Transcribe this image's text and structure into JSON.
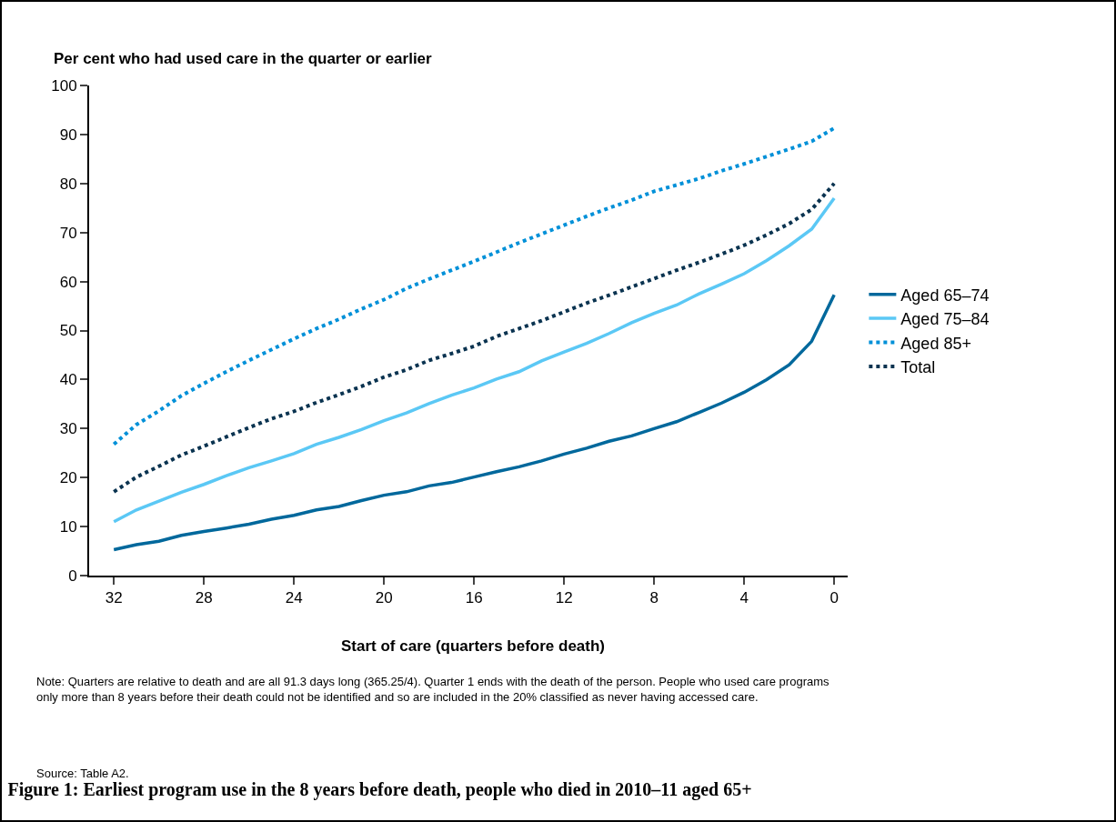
{
  "chart_data": {
    "type": "line",
    "title": "Figure 1: Earliest program use in the 8 years before death, people who died in 2010–11 aged 65+",
    "xlabel": "Start of care (quarters before death)",
    "ylabel": "Per cent who had used care in the quarter or earlier",
    "x": [
      32,
      31,
      30,
      29,
      28,
      27,
      26,
      25,
      24,
      23,
      22,
      21,
      20,
      19,
      18,
      17,
      16,
      15,
      14,
      13,
      12,
      11,
      10,
      9,
      8,
      7,
      6,
      5,
      4,
      3,
      2,
      1,
      0
    ],
    "series": [
      {
        "name": "Aged 65–74",
        "color": "#00689c",
        "line_style": "solid",
        "values": [
          5.3,
          6.3,
          7.0,
          8.2,
          9.0,
          9.7,
          10.5,
          11.5,
          12.3,
          13.4,
          14.1,
          15.3,
          16.4,
          17.1,
          18.3,
          19.0,
          20.1,
          21.2,
          22.2,
          23.4,
          24.8,
          26.0,
          27.4,
          28.5,
          30.0,
          31.4,
          33.3,
          35.2,
          37.4,
          40.0,
          43.0,
          47.8,
          57.3
        ]
      },
      {
        "name": "Aged 75–84",
        "color": "#5bc8f5",
        "line_style": "solid",
        "values": [
          11.0,
          13.4,
          15.2,
          17.0,
          18.6,
          20.4,
          22.0,
          23.4,
          24.9,
          26.8,
          28.2,
          29.8,
          31.6,
          33.2,
          35.1,
          36.8,
          38.3,
          40.1,
          41.6,
          43.8,
          45.6,
          47.4,
          49.4,
          51.6,
          53.5,
          55.2,
          57.5,
          59.5,
          61.6,
          64.3,
          67.3,
          70.7,
          77.0
        ]
      },
      {
        "name": "Aged 85+",
        "color": "#0090d8",
        "line_style": "dotted",
        "values": [
          26.8,
          30.8,
          33.6,
          36.7,
          39.2,
          41.6,
          43.9,
          46.1,
          48.3,
          50.4,
          52.3,
          54.4,
          56.3,
          58.6,
          60.5,
          62.3,
          64.1,
          66.0,
          67.9,
          69.7,
          71.5,
          73.3,
          75.0,
          76.6,
          78.4,
          79.7,
          81.0,
          82.6,
          84.0,
          85.5,
          87.0,
          88.6,
          91.3
        ]
      },
      {
        "name": "Total",
        "color": "#0a3350",
        "line_style": "dotted",
        "values": [
          17.1,
          20.1,
          22.3,
          24.6,
          26.4,
          28.3,
          30.2,
          32.0,
          33.5,
          35.3,
          36.9,
          38.6,
          40.5,
          42.0,
          43.9,
          45.3,
          46.8,
          48.8,
          50.4,
          52.0,
          53.8,
          55.6,
          57.2,
          58.9,
          60.6,
          62.3,
          63.9,
          65.6,
          67.4,
          69.5,
          71.8,
          74.7,
          80.0
        ]
      }
    ],
    "xlim": [
      33.1,
      -0.6
    ],
    "xticks": [
      32,
      28,
      24,
      20,
      16,
      12,
      8,
      4,
      0
    ],
    "ylim": [
      0,
      100
    ],
    "yticks": [
      0,
      10,
      20,
      30,
      40,
      50,
      60,
      70,
      80,
      90,
      100
    ],
    "grid": false,
    "legend": "right",
    "marker": "none",
    "annotations": [
      "Note: Quarters are relative to death and are all 91.3 days long (365.25/4). Quarter 1 ends with the death of the person. People who used care programs only more than 8 years before their death could not be identified and so are included in the 20% classified as never having accessed care.",
      "Source: Table A2."
    ]
  }
}
